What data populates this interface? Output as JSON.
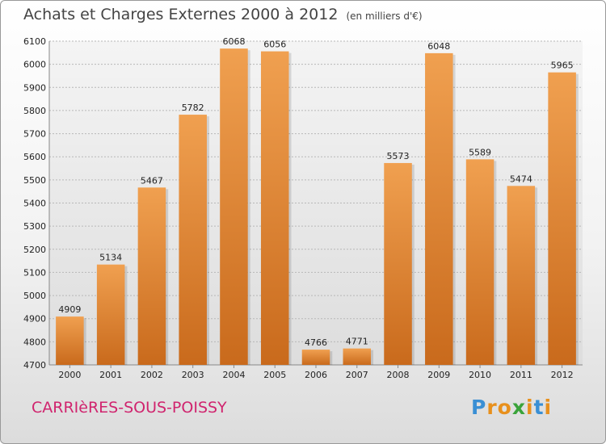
{
  "chart_data": {
    "type": "bar",
    "title": "Achats et Charges Externes 2000 à 2012",
    "subtitle": "(en milliers d'€)",
    "categories": [
      "2000",
      "2001",
      "2002",
      "2003",
      "2004",
      "2005",
      "2006",
      "2007",
      "2008",
      "2009",
      "2010",
      "2011",
      "2012"
    ],
    "values": [
      4909,
      5134,
      5467,
      5782,
      6068,
      6056,
      4766,
      4771,
      5573,
      6048,
      5589,
      5474,
      5965
    ],
    "ylim": [
      4700,
      6100
    ],
    "yticks": [
      4700,
      4800,
      4900,
      5000,
      5100,
      5200,
      5300,
      5400,
      5500,
      5600,
      5700,
      5800,
      5900,
      6000,
      6100
    ],
    "grid": true,
    "bar_color": "#f0a050",
    "bar_color_dark": "#c96a1c"
  },
  "footer": {
    "commune": "CARRIèRES-SOUS-POISSY",
    "logo_letters": [
      {
        "ch": "P",
        "color": "#3a8fd4"
      },
      {
        "ch": "r",
        "color": "#e8901c"
      },
      {
        "ch": "o",
        "color": "#e8901c"
      },
      {
        "ch": "x",
        "color": "#3aa33a"
      },
      {
        "ch": "i",
        "color": "#e8901c"
      },
      {
        "ch": "t",
        "color": "#3a8fd4"
      },
      {
        "ch": "i",
        "color": "#e8901c"
      }
    ]
  }
}
